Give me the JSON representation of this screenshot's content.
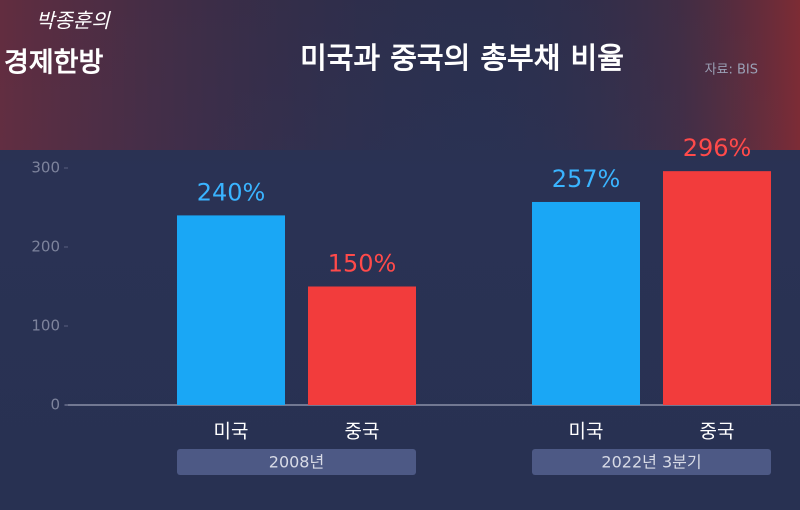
{
  "logo": {
    "subtitle": "박종훈의",
    "title": "경제한방"
  },
  "source": "자료: BIS",
  "chart_data": {
    "type": "bar",
    "title": "미국과 중국의 총부채 비율",
    "categories": [
      "2008년",
      "2022년 3분기"
    ],
    "series": [
      {
        "name": "미국",
        "color": "#1aa7f5",
        "values": [
          240,
          257
        ],
        "value_labels": [
          "240%",
          "257%"
        ],
        "label_color": "#3ab4ff"
      },
      {
        "name": "중국",
        "color": "#f23c3c",
        "values": [
          150,
          296
        ],
        "value_labels": [
          "150%",
          "296%"
        ],
        "label_color": "#ff4a4a"
      }
    ],
    "ylim": [
      0,
      300
    ],
    "yticks": [
      0,
      100,
      200,
      300
    ],
    "grid": false
  }
}
